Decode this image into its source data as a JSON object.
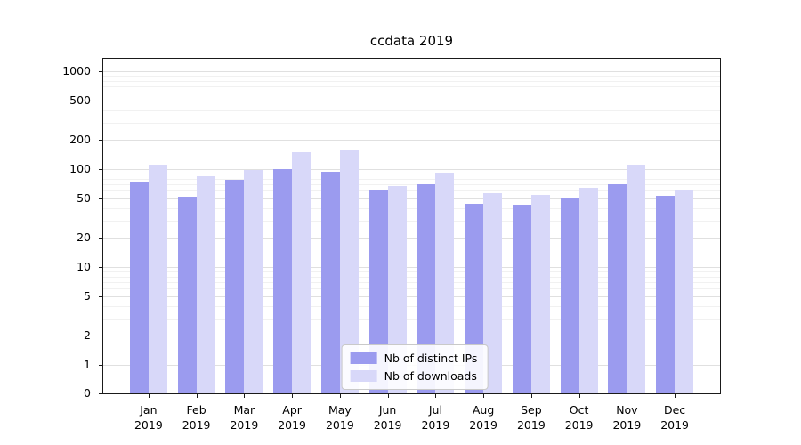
{
  "chart_data": {
    "type": "bar",
    "title": "ccdata 2019",
    "categories": [
      "Jan",
      "Feb",
      "Mar",
      "Apr",
      "May",
      "Jun",
      "Jul",
      "Aug",
      "Sep",
      "Oct",
      "Nov",
      "Dec"
    ],
    "x_year": "2019",
    "series": [
      {
        "name": "Nb of distinct IPs",
        "color": "#9b9bef",
        "values": [
          75,
          52,
          78,
          100,
          95,
          62,
          70,
          44,
          43,
          50,
          70,
          53
        ]
      },
      {
        "name": "Nb of downloads",
        "color": "#d8d8f9",
        "values": [
          110,
          85,
          98,
          150,
          155,
          67,
          93,
          57,
          55,
          64,
          110,
          62
        ]
      }
    ],
    "yscale": "symlog",
    "yticks": [
      0,
      1,
      2,
      5,
      10,
      20,
      50,
      100,
      200,
      500,
      1000
    ],
    "ylim": [
      0,
      1000
    ],
    "grid": true,
    "legend_position": "lower center"
  }
}
